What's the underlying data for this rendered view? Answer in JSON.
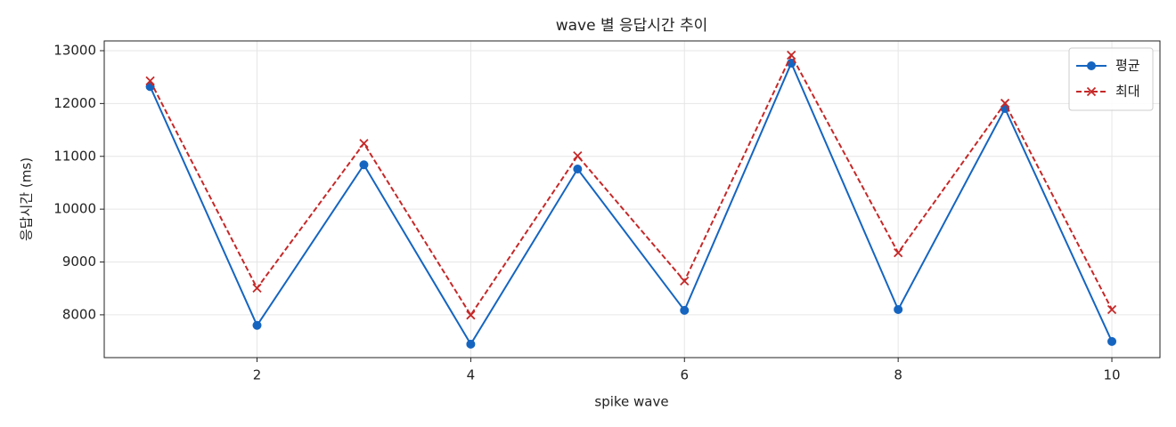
{
  "chart_data": {
    "type": "line",
    "title": "wave 별 응답시간 추이",
    "x_label": "spike wave",
    "y_label": "응답시간 (ms)",
    "x": [
      1,
      2,
      3,
      4,
      5,
      6,
      7,
      8,
      9,
      10
    ],
    "series": [
      {
        "name": "평균",
        "color": "#1565c0",
        "marker": "circle",
        "dashed": false,
        "values": [
          12320,
          7800,
          10840,
          7445,
          10760,
          8085,
          12765,
          8100,
          11905,
          7495
        ]
      },
      {
        "name": "최대",
        "color": "#c62828",
        "marker": "cross",
        "dashed": true,
        "values": [
          12430,
          8505,
          11245,
          7995,
          11010,
          8640,
          12915,
          9175,
          12005,
          8100
        ]
      }
    ],
    "xlim": [
      0.57,
      10.45
    ],
    "ylim": [
      7190,
      13185
    ],
    "xticks": [
      2,
      4,
      6,
      8,
      10
    ],
    "yticks": [
      8000,
      9000,
      10000,
      11000,
      12000,
      13000
    ],
    "grid": true,
    "legend": "upper right"
  }
}
